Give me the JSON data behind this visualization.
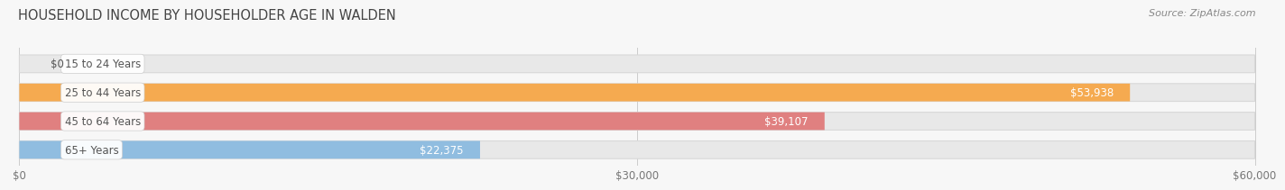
{
  "title": "HOUSEHOLD INCOME BY HOUSEHOLDER AGE IN WALDEN",
  "source": "Source: ZipAtlas.com",
  "categories": [
    "15 to 24 Years",
    "25 to 44 Years",
    "45 to 64 Years",
    "65+ Years"
  ],
  "values": [
    0,
    53938,
    39107,
    22375
  ],
  "bar_colors": [
    "#f2a7bc",
    "#f5aa50",
    "#e08080",
    "#90bde0"
  ],
  "value_labels": [
    "$0",
    "$53,938",
    "$39,107",
    "$22,375"
  ],
  "xmax": 60000,
  "xticks": [
    0,
    30000,
    60000
  ],
  "xtick_labels": [
    "$0",
    "$30,000",
    "$60,000"
  ],
  "title_fontsize": 10.5,
  "source_fontsize": 8,
  "cat_fontsize": 8.5,
  "val_fontsize": 8.5,
  "tick_fontsize": 8.5,
  "bar_height": 0.62,
  "bar_gap": 0.15,
  "background_color": "#f7f7f7",
  "bar_bg_color": "#e8e8e8",
  "bar_bg_edge": "#d8d8d8"
}
